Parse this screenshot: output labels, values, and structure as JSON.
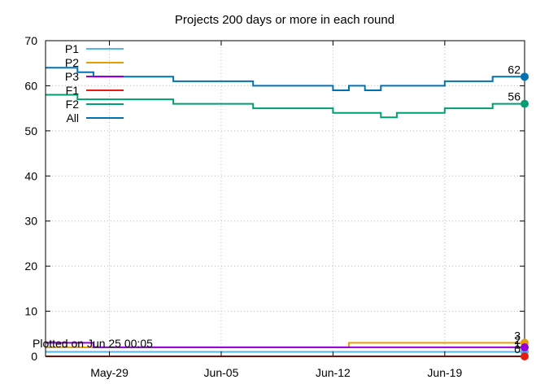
{
  "chart_data": {
    "type": "line",
    "step": true,
    "title": "Projects 200 days or more in each round",
    "xlabel": "",
    "ylabel": "",
    "ylim": [
      0,
      70
    ],
    "yticks": [
      0,
      10,
      20,
      30,
      40,
      50,
      60,
      70
    ],
    "x_start": "May-25",
    "x_end": "Jun-24",
    "xticks": [
      "May-29",
      "Jun-05",
      "Jun-12",
      "Jun-19"
    ],
    "grid": true,
    "legend_position": "top-left",
    "annotation": "Plotted on Jun 25 00:05",
    "series": [
      {
        "name": "P1",
        "color": "#56b4e9",
        "points": [
          [
            "May-25",
            1
          ],
          [
            "Jun-24",
            1
          ]
        ],
        "end_label": ""
      },
      {
        "name": "P2",
        "color": "#e69f00",
        "points": [
          [
            "May-25",
            2
          ],
          [
            "Jun-13",
            3
          ],
          [
            "Jun-24",
            3
          ]
        ],
        "end_label": "3"
      },
      {
        "name": "P3",
        "color": "#9400d3",
        "points": [
          [
            "May-25",
            3
          ],
          [
            "May-28",
            2
          ],
          [
            "Jun-24",
            2
          ]
        ],
        "end_label": "2"
      },
      {
        "name": "F1",
        "color": "#e51e10",
        "points": [
          [
            "May-25",
            0
          ],
          [
            "Jun-24",
            0
          ]
        ],
        "end_label": "0"
      },
      {
        "name": "F2",
        "color": "#009e73",
        "points": [
          [
            "May-25",
            58
          ],
          [
            "May-27",
            57
          ],
          [
            "Jun-02",
            56
          ],
          [
            "Jun-07",
            55
          ],
          [
            "Jun-12",
            54
          ],
          [
            "Jun-15",
            53
          ],
          [
            "Jun-16",
            54
          ],
          [
            "Jun-19",
            55
          ],
          [
            "Jun-22",
            56
          ],
          [
            "Jun-24",
            56
          ]
        ],
        "end_label": "56"
      },
      {
        "name": "All",
        "color": "#0072b2",
        "points": [
          [
            "May-25",
            64
          ],
          [
            "May-27",
            63
          ],
          [
            "May-28",
            62
          ],
          [
            "Jun-02",
            61
          ],
          [
            "Jun-07",
            60
          ],
          [
            "Jun-12",
            59
          ],
          [
            "Jun-13",
            60
          ],
          [
            "Jun-14",
            59
          ],
          [
            "Jun-15",
            60
          ],
          [
            "Jun-19",
            61
          ],
          [
            "Jun-22",
            62
          ],
          [
            "Jun-24",
            62
          ]
        ],
        "end_label": "62"
      }
    ],
    "extra_end_labels": [
      "1"
    ]
  }
}
